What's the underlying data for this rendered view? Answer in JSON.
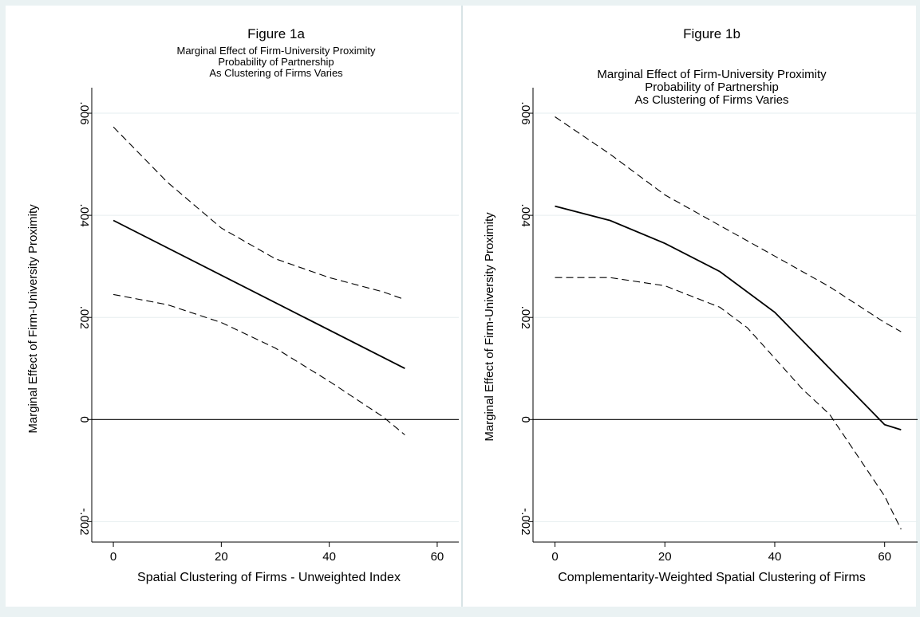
{
  "chart_data": [
    {
      "type": "line",
      "title": "Figure 1a",
      "subtitle": [
        "Marginal Effect of Firm-University Proximity",
        "Probability of Partnership",
        "As Clustering of Firms Varies"
      ],
      "xlabel": "Spatial Clustering of Firms - Unweighted Index",
      "ylabel": "Marginal Effect of Firm-University Proximity",
      "xlim": [
        -4,
        64
      ],
      "ylim": [
        -0.0024,
        0.0065
      ],
      "xticks": [
        0,
        20,
        40,
        60
      ],
      "xtick_labels": [
        "0",
        "20",
        "40",
        "60"
      ],
      "yticks": [
        -0.002,
        0,
        0.002,
        0.004,
        0.006
      ],
      "ytick_labels": [
        "-.002",
        "0",
        ".002",
        ".004",
        ".006"
      ],
      "grid": true,
      "reference_line": 0,
      "series": [
        {
          "style": "solid",
          "x": [
            0,
            54
          ],
          "y": [
            0.0039,
            0.001
          ]
        },
        {
          "style": "dashed",
          "x": [
            0,
            10,
            20,
            30,
            40,
            50,
            54
          ],
          "y": [
            0.00573,
            0.00465,
            0.00375,
            0.00315,
            0.00278,
            0.0025,
            0.00235
          ]
        },
        {
          "style": "dashed",
          "x": [
            0,
            10,
            20,
            30,
            40,
            50,
            54
          ],
          "y": [
            0.00245,
            0.00225,
            0.0019,
            0.0014,
            0.00075,
            5e-05,
            -0.0003
          ]
        }
      ]
    },
    {
      "type": "line",
      "title": "Figure 1b",
      "subtitle": [
        "Marginal Effect of Firm-University Proximity",
        "Probability of Partnership",
        "As Clustering of Firms Varies"
      ],
      "xlabel": "Complementarity-Weighted Spatial Clustering of Firms",
      "ylabel": "Marginal Effect of Firm-University Proximity",
      "xlim": [
        -4,
        66
      ],
      "ylim": [
        -0.0024,
        0.0065
      ],
      "xticks": [
        0,
        20,
        40,
        60
      ],
      "xtick_labels": [
        "0",
        "20",
        "40",
        "60"
      ],
      "yticks": [
        -0.002,
        0,
        0.002,
        0.004,
        0.006
      ],
      "ytick_labels": [
        "-.002",
        "0",
        ".002",
        ".004",
        ".006"
      ],
      "grid": true,
      "reference_line": 0,
      "series": [
        {
          "style": "solid",
          "x": [
            0,
            10,
            20,
            30,
            40,
            50,
            55,
            60,
            63
          ],
          "y": [
            0.00418,
            0.0039,
            0.00345,
            0.0029,
            0.0021,
            0.001,
            0.00045,
            -0.0001,
            -0.0002
          ]
        },
        {
          "style": "dashed",
          "x": [
            0,
            10,
            20,
            30,
            40,
            50,
            60,
            63
          ],
          "y": [
            0.00593,
            0.0052,
            0.0044,
            0.0038,
            0.0032,
            0.0026,
            0.0019,
            0.00172
          ]
        },
        {
          "style": "dashed",
          "x": [
            0,
            10,
            20,
            30,
            35,
            40,
            45,
            50,
            55,
            60,
            63
          ],
          "y": [
            0.00278,
            0.00278,
            0.00262,
            0.0022,
            0.0018,
            0.0012,
            0.0006,
            0.0001,
            -0.0007,
            -0.0015,
            -0.00215
          ]
        }
      ]
    }
  ]
}
